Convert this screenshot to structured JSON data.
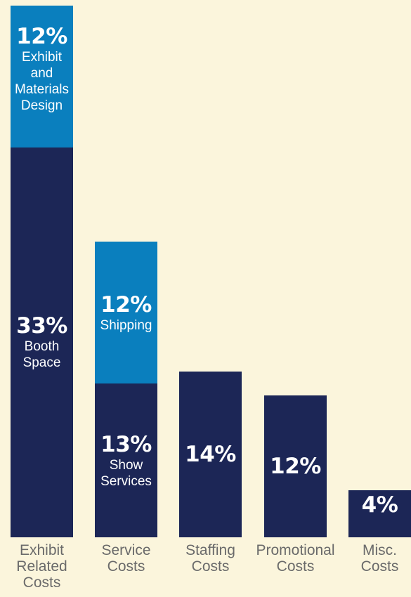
{
  "colors": {
    "background": "#fbf5dc",
    "dark": "#1c2656",
    "light": "#0a7fbe",
    "label": "#6a6a6a"
  },
  "chart_data": {
    "type": "bar",
    "stacked": true,
    "categories": [
      "Exhibit\nRelated\nCosts",
      "Service\nCosts",
      "Staffing\nCosts",
      "Promotional\nCosts",
      "Misc.\nCosts"
    ],
    "bars": [
      {
        "segments": [
          {
            "value": 33,
            "label": "33%",
            "sublabel": "Booth\nSpace",
            "color": "#1c2656"
          },
          {
            "value": 12,
            "label": "12%",
            "sublabel": "Exhibit\nand\nMaterials\nDesign",
            "color": "#0a7fbe"
          }
        ]
      },
      {
        "segments": [
          {
            "value": 13,
            "label": "13%",
            "sublabel": "Show\nServices",
            "color": "#1c2656"
          },
          {
            "value": 12,
            "label": "12%",
            "sublabel": "Shipping",
            "color": "#0a7fbe"
          }
        ]
      },
      {
        "segments": [
          {
            "value": 14,
            "label": "14%",
            "sublabel": "",
            "color": "#1c2656"
          }
        ]
      },
      {
        "segments": [
          {
            "value": 12,
            "label": "12%",
            "sublabel": "",
            "color": "#1c2656"
          }
        ]
      },
      {
        "segments": [
          {
            "value": 4,
            "label": "4%",
            "sublabel": "",
            "color": "#1c2656"
          }
        ]
      }
    ],
    "ylim": [
      0,
      45
    ],
    "grid": false,
    "legend": "none"
  }
}
